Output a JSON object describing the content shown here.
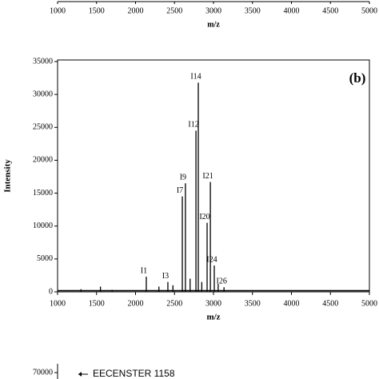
{
  "chart_data": [
    {
      "type": "axis",
      "xlabel": "m/z",
      "xlim": [
        1000,
        5000
      ],
      "xticks": [
        1000,
        1500,
        2000,
        2500,
        3000,
        3500,
        4000,
        4500,
        5000
      ]
    },
    {
      "type": "spectrum",
      "panel": "(b)",
      "xlabel": "m/z",
      "ylabel": "Intensity",
      "xlim": [
        1000,
        5000
      ],
      "ylim": [
        0,
        35000
      ],
      "xticks": [
        1000,
        1500,
        2000,
        2500,
        3000,
        3500,
        4000,
        4500,
        5000
      ],
      "yticks": [
        0,
        5000,
        10000,
        15000,
        20000,
        25000,
        30000,
        35000
      ],
      "color": "#000000",
      "x": [
        1300,
        1550,
        1700,
        2138,
        2300,
        2415,
        2480,
        2600,
        2640,
        2700,
        2775,
        2805,
        2850,
        2918,
        2960,
        3010,
        3060,
        3135
      ],
      "values": [
        400,
        800,
        300,
        2300,
        800,
        1500,
        1000,
        14500,
        16500,
        2000,
        24500,
        31800,
        1500,
        10500,
        16700,
        4000,
        1200,
        700
      ],
      "labels": [
        null,
        null,
        null,
        "I1",
        null,
        "I3",
        null,
        "I7",
        "I9",
        null,
        "I12",
        "I14",
        null,
        "I20",
        "I21",
        "I24",
        null,
        "I26"
      ]
    },
    {
      "type": "axis",
      "yticks": [
        70000
      ],
      "annotation": "EECENSTER 1158"
    }
  ]
}
